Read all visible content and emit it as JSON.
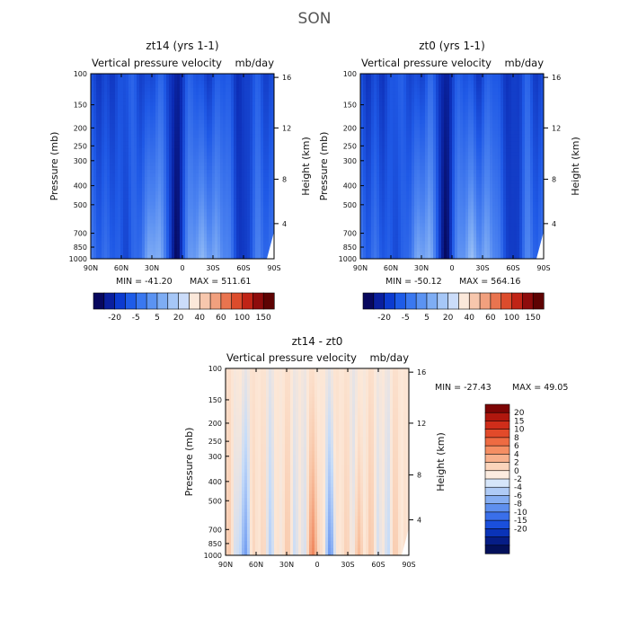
{
  "figure": {
    "title": "SON"
  },
  "chart_data": [
    {
      "type": "heatmap",
      "title": "zt14 (yrs 1-1)",
      "subtitle_left": "Vertical pressure velocity",
      "subtitle_right": "mb/day",
      "xlabel": "",
      "ylabel": "Pressure (mb)",
      "y2label": "Height (km)",
      "x_ticks": [
        "90N",
        "60N",
        "30N",
        "0",
        "30S",
        "60S",
        "90S"
      ],
      "y_ticks": [
        "100",
        "150",
        "200",
        "250",
        "300",
        "400",
        "500",
        "700",
        "850",
        "1000"
      ],
      "y2_ticks": [
        "16",
        "12",
        "8",
        "4"
      ],
      "ylim": [
        1000,
        100
      ],
      "min_label": "MIN = -41.20",
      "max_label": "MAX = 511.61",
      "min": -41.2,
      "max": 511.61,
      "colorbar_labels": [
        "-20",
        "-5",
        "5",
        "20",
        "40",
        "60",
        "100",
        "150"
      ],
      "colorbar_colors": [
        "#08085e",
        "#0a1f9e",
        "#0c3bd0",
        "#1e5ce8",
        "#3a78f0",
        "#5b93f2",
        "#7eadf4",
        "#a6c7f7",
        "#cbdcf9",
        "#fbe8da",
        "#f7c7ad",
        "#f1a07e",
        "#e9744f",
        "#dc4c2c",
        "#c02416",
        "#8e0c0c",
        "#5e0303"
      ]
    },
    {
      "type": "heatmap",
      "title": "zt0 (yrs 1-1)",
      "subtitle_left": "Vertical pressure velocity",
      "subtitle_right": "mb/day",
      "xlabel": "",
      "ylabel": "Pressure (mb)",
      "y2label": "Height (km)",
      "x_ticks": [
        "90N",
        "60N",
        "30N",
        "0",
        "30S",
        "60S",
        "90S"
      ],
      "y_ticks": [
        "100",
        "150",
        "200",
        "250",
        "300",
        "400",
        "500",
        "700",
        "850",
        "1000"
      ],
      "y2_ticks": [
        "16",
        "12",
        "8",
        "4"
      ],
      "ylim": [
        1000,
        100
      ],
      "min_label": "MIN = -50.12",
      "max_label": "MAX = 564.16",
      "min": -50.12,
      "max": 564.16,
      "colorbar_labels": [
        "-20",
        "-5",
        "5",
        "20",
        "40",
        "60",
        "100",
        "150"
      ],
      "colorbar_colors": [
        "#08085e",
        "#0a1f9e",
        "#0c3bd0",
        "#1e5ce8",
        "#3a78f0",
        "#5b93f2",
        "#7eadf4",
        "#a6c7f7",
        "#cbdcf9",
        "#fbe8da",
        "#f7c7ad",
        "#f1a07e",
        "#e9744f",
        "#dc4c2c",
        "#c02416",
        "#8e0c0c",
        "#5e0303"
      ]
    },
    {
      "type": "heatmap",
      "title": "zt14 - zt0",
      "subtitle_left": "Vertical pressure velocity",
      "subtitle_right": "mb/day",
      "xlabel": "",
      "ylabel": "Pressure (mb)",
      "y2label": "Height (km)",
      "x_ticks": [
        "90N",
        "60N",
        "30N",
        "0",
        "30S",
        "60S",
        "90S"
      ],
      "y_ticks": [
        "100",
        "150",
        "200",
        "250",
        "300",
        "400",
        "500",
        "700",
        "850",
        "1000"
      ],
      "y2_ticks": [
        "16",
        "12",
        "8",
        "4"
      ],
      "ylim": [
        1000,
        100
      ],
      "min_label": "MIN = -27.43",
      "max_label": "MAX =  49.05",
      "min": -27.43,
      "max": 49.05,
      "colorbar_labels": [
        "20",
        "15",
        "10",
        "8",
        "6",
        "4",
        "2",
        "0",
        "-2",
        "-4",
        "-6",
        "-8",
        "-10",
        "-15",
        "-20"
      ],
      "colorbar_colors": [
        "#7d0505",
        "#b0170e",
        "#cf2d1a",
        "#e24a2a",
        "#ee6b42",
        "#f58e63",
        "#f8b08c",
        "#fbd4bb",
        "#fcece0",
        "#d6e6fa",
        "#afcbf6",
        "#86aef2",
        "#5e8fee",
        "#3a6fea",
        "#1a4fdc",
        "#0a33b8",
        "#061d86",
        "#03105a"
      ]
    }
  ]
}
